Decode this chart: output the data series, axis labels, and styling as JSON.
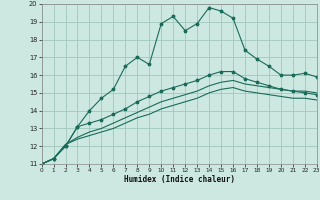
{
  "title": "",
  "xlabel": "Humidex (Indice chaleur)",
  "bg_color": "#cce8e0",
  "grid_color": "#a0c8be",
  "line_color": "#1a6b5a",
  "xlim": [
    0,
    23
  ],
  "ylim": [
    11,
    20
  ],
  "xticks": [
    0,
    1,
    2,
    3,
    4,
    5,
    6,
    7,
    8,
    9,
    10,
    11,
    12,
    13,
    14,
    15,
    16,
    17,
    18,
    19,
    20,
    21,
    22,
    23
  ],
  "yticks": [
    11,
    12,
    13,
    14,
    15,
    16,
    17,
    18,
    19,
    20
  ],
  "line1_x": [
    0,
    1,
    2,
    3,
    4,
    5,
    6,
    7,
    8,
    9,
    10,
    11,
    12,
    13,
    14,
    15,
    16,
    17,
    18,
    19,
    20,
    21,
    22,
    23
  ],
  "line1_y": [
    11.0,
    11.3,
    12.0,
    13.1,
    14.0,
    14.7,
    15.2,
    16.5,
    17.0,
    16.6,
    18.9,
    19.3,
    18.5,
    18.9,
    19.8,
    19.6,
    19.2,
    17.4,
    16.9,
    16.5,
    16.0,
    16.0,
    16.1,
    15.9
  ],
  "line2_x": [
    0,
    1,
    2,
    3,
    4,
    5,
    6,
    7,
    8,
    9,
    10,
    11,
    12,
    13,
    14,
    15,
    16,
    17,
    18,
    19,
    20,
    21,
    22,
    23
  ],
  "line2_y": [
    11.0,
    11.3,
    12.0,
    13.1,
    13.3,
    13.5,
    13.8,
    14.1,
    14.5,
    14.8,
    15.1,
    15.3,
    15.5,
    15.7,
    16.0,
    16.2,
    16.2,
    15.8,
    15.6,
    15.4,
    15.2,
    15.1,
    15.0,
    14.9
  ],
  "line3_x": [
    0,
    1,
    2,
    3,
    4,
    5,
    6,
    7,
    8,
    9,
    10,
    11,
    12,
    13,
    14,
    15,
    16,
    17,
    18,
    19,
    20,
    21,
    22,
    23
  ],
  "line3_y": [
    11.0,
    11.3,
    12.1,
    12.5,
    12.8,
    13.0,
    13.3,
    13.6,
    13.9,
    14.2,
    14.5,
    14.7,
    14.9,
    15.1,
    15.4,
    15.6,
    15.7,
    15.5,
    15.4,
    15.3,
    15.2,
    15.1,
    15.1,
    15.0
  ],
  "line4_x": [
    0,
    1,
    2,
    3,
    4,
    5,
    6,
    7,
    8,
    9,
    10,
    11,
    12,
    13,
    14,
    15,
    16,
    17,
    18,
    19,
    20,
    21,
    22,
    23
  ],
  "line4_y": [
    11.0,
    11.3,
    12.1,
    12.4,
    12.6,
    12.8,
    13.0,
    13.3,
    13.6,
    13.8,
    14.1,
    14.3,
    14.5,
    14.7,
    15.0,
    15.2,
    15.3,
    15.1,
    15.0,
    14.9,
    14.8,
    14.7,
    14.7,
    14.6
  ]
}
